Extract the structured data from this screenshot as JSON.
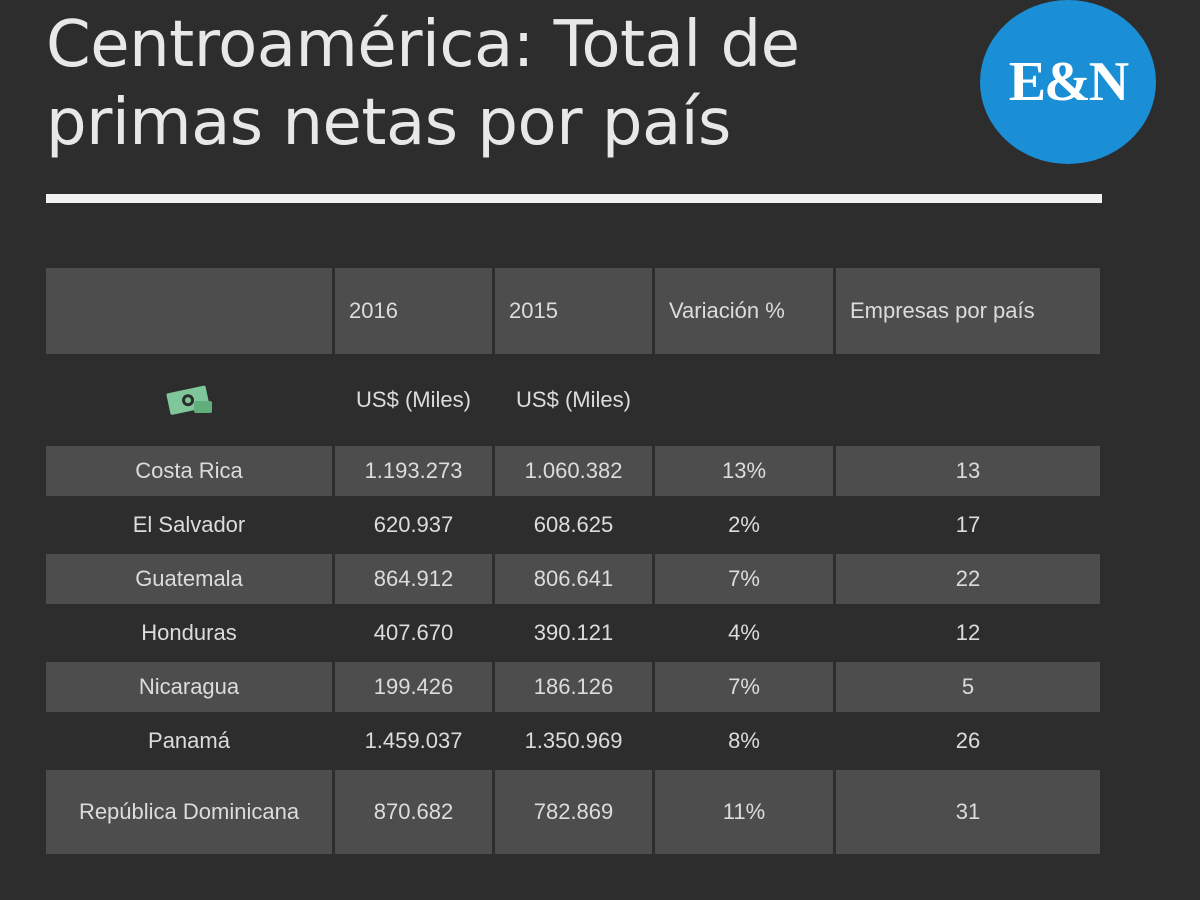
{
  "header": {
    "title": "Centroamérica: Total de primas netas por país",
    "logo_text": "E&N"
  },
  "chart_data": {
    "type": "table",
    "title": "Centroamérica: Total de primas netas por país",
    "columns": [
      "",
      "2016",
      "2015",
      "Variación %",
      "Empresas por país"
    ],
    "units": [
      "money-icon",
      "US$ (Miles)",
      "US$ (Miles)",
      "",
      ""
    ],
    "rows": [
      {
        "pais": "Costa Rica",
        "y2016": "1.193.273",
        "y2015": "1.060.382",
        "variacion": "13%",
        "empresas": "13"
      },
      {
        "pais": "El Salvador",
        "y2016": "620.937",
        "y2015": "608.625",
        "variacion": "2%",
        "empresas": "17"
      },
      {
        "pais": "Guatemala",
        "y2016": "864.912",
        "y2015": "806.641",
        "variacion": "7%",
        "empresas": "22"
      },
      {
        "pais": "Honduras",
        "y2016": "407.670",
        "y2015": "390.121",
        "variacion": "4%",
        "empresas": "12"
      },
      {
        "pais": "Nicaragua",
        "y2016": "199.426",
        "y2015": "186.126",
        "variacion": "7%",
        "empresas": "5"
      },
      {
        "pais": "Panamá",
        "y2016": "1.459.037",
        "y2015": "1.350.969",
        "variacion": "8%",
        "empresas": "26"
      },
      {
        "pais": "República Dominicana",
        "y2016": "870.682",
        "y2015": "782.869",
        "variacion": "11%",
        "empresas": "31"
      }
    ]
  },
  "colors": {
    "background": "#2d2d2d",
    "row_shade": "#4d4d4d",
    "logo": "#1a8fd6",
    "icon_green": "#7fc79a"
  }
}
